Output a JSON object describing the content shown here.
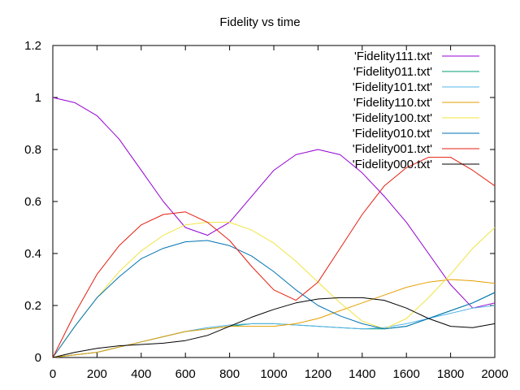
{
  "chart_data": {
    "type": "line",
    "title": "Fidelity vs time",
    "xlabel": "",
    "ylabel": "",
    "xlim": [
      0,
      2000
    ],
    "ylim": [
      0,
      1.2
    ],
    "x_ticks": [
      0,
      200,
      400,
      600,
      800,
      1000,
      1200,
      1400,
      1600,
      1800,
      2000
    ],
    "y_ticks": [
      0,
      0.2,
      0.4,
      0.6,
      0.8,
      1,
      1.2
    ],
    "grid": false,
    "legend_position": "top-right",
    "x": [
      0,
      100,
      200,
      300,
      400,
      500,
      600,
      700,
      800,
      900,
      1000,
      1100,
      1200,
      1300,
      1400,
      1500,
      1600,
      1700,
      1800,
      1900,
      2000
    ],
    "series": [
      {
        "name": "'Fidelity111.txt'",
        "color": "#9400d3",
        "values": [
          1.0,
          0.98,
          0.93,
          0.84,
          0.72,
          0.6,
          0.5,
          0.47,
          0.52,
          0.62,
          0.72,
          0.78,
          0.8,
          0.78,
          0.71,
          0.62,
          0.52,
          0.4,
          0.28,
          0.19,
          0.21
        ]
      },
      {
        "name": "'Fidelity011.txt'",
        "color": "#009e73",
        "values": [
          0.0,
          0.01,
          0.02,
          0.04,
          0.06,
          0.08,
          0.1,
          0.11,
          0.12,
          0.13,
          0.13,
          0.125,
          0.12,
          0.115,
          0.11,
          0.11,
          0.12,
          0.15,
          0.18,
          0.21,
          0.25
        ]
      },
      {
        "name": "'Fidelity101.txt'",
        "color": "#56b4e9",
        "values": [
          0.0,
          0.01,
          0.02,
          0.04,
          0.06,
          0.08,
          0.1,
          0.115,
          0.125,
          0.13,
          0.13,
          0.125,
          0.12,
          0.115,
          0.11,
          0.115,
          0.13,
          0.15,
          0.17,
          0.19,
          0.2
        ]
      },
      {
        "name": "'Fidelity110.txt'",
        "color": "#e69f00",
        "values": [
          0.0,
          0.01,
          0.02,
          0.04,
          0.06,
          0.08,
          0.1,
          0.11,
          0.12,
          0.12,
          0.12,
          0.13,
          0.15,
          0.18,
          0.21,
          0.24,
          0.27,
          0.29,
          0.3,
          0.295,
          0.285
        ]
      },
      {
        "name": "'Fidelity100.txt'",
        "color": "#f0e442",
        "values": [
          0.0,
          0.12,
          0.23,
          0.33,
          0.41,
          0.47,
          0.51,
          0.52,
          0.52,
          0.49,
          0.44,
          0.37,
          0.29,
          0.21,
          0.14,
          0.11,
          0.15,
          0.23,
          0.32,
          0.42,
          0.5
        ]
      },
      {
        "name": "'Fidelity010.txt'",
        "color": "#0072b2",
        "values": [
          0.0,
          0.12,
          0.23,
          0.31,
          0.38,
          0.42,
          0.445,
          0.45,
          0.43,
          0.39,
          0.33,
          0.26,
          0.2,
          0.16,
          0.13,
          0.11,
          0.12,
          0.15,
          0.18,
          0.21,
          0.25
        ]
      },
      {
        "name": "'Fidelity001.txt'",
        "color": "#e51e10",
        "values": [
          0.0,
          0.17,
          0.32,
          0.43,
          0.51,
          0.55,
          0.56,
          0.52,
          0.45,
          0.35,
          0.26,
          0.22,
          0.29,
          0.42,
          0.55,
          0.66,
          0.73,
          0.77,
          0.77,
          0.72,
          0.66
        ]
      },
      {
        "name": "'Fidelity000.txt'",
        "color": "#000000",
        "values": [
          0.0,
          0.02,
          0.035,
          0.045,
          0.05,
          0.055,
          0.065,
          0.085,
          0.12,
          0.155,
          0.185,
          0.21,
          0.225,
          0.23,
          0.23,
          0.22,
          0.19,
          0.15,
          0.12,
          0.115,
          0.13
        ]
      }
    ]
  }
}
